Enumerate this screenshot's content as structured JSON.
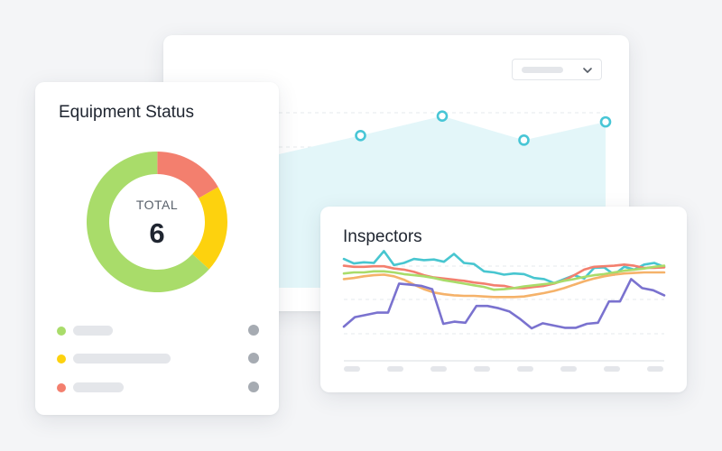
{
  "background_card": {
    "dropdown": {
      "icon": "chevron-down-icon"
    },
    "area_series": {
      "color": "#48c6d6",
      "fill": "#e3f6f9",
      "values": [
        0.0,
        0.45,
        0.92,
        0.34,
        0.78
      ],
      "markers": [
        1,
        2,
        3,
        4
      ]
    }
  },
  "equipment_status": {
    "title": "Equipment Status",
    "total_label": "TOTAL",
    "total_value": "6",
    "segments": [
      {
        "value": 1,
        "color": "#f37f6e"
      },
      {
        "value": 1.2,
        "color": "#fdd20e"
      },
      {
        "value": 3.8,
        "color": "#a9dc6a"
      }
    ],
    "legend": [
      {
        "color": "#a9dc6a"
      },
      {
        "color": "#fdd20e"
      },
      {
        "color": "#f37f6e"
      }
    ]
  },
  "inspectors": {
    "title": "Inspectors",
    "series": [
      {
        "color": "#48c6d0",
        "values": [
          0.74,
          0.66,
          0.68,
          0.67,
          0.88,
          0.63,
          0.67,
          0.74,
          0.72,
          0.73,
          0.69,
          0.83,
          0.67,
          0.65,
          0.52,
          0.5,
          0.46,
          0.48,
          0.47,
          0.4,
          0.38,
          0.31,
          0.38,
          0.45,
          0.39,
          0.58,
          0.59,
          0.46,
          0.6,
          0.55,
          0.64,
          0.67,
          0.6
        ]
      },
      {
        "color": "#f37f6e",
        "values": [
          0.62,
          0.6,
          0.6,
          0.61,
          0.61,
          0.57,
          0.55,
          0.51,
          0.45,
          0.41,
          0.39,
          0.37,
          0.35,
          0.32,
          0.3,
          0.27,
          0.26,
          0.22,
          0.22,
          0.24,
          0.26,
          0.3,
          0.36,
          0.45,
          0.55,
          0.6,
          0.61,
          0.62,
          0.64,
          0.62,
          0.58,
          0.58,
          0.59
        ]
      },
      {
        "color": "#a9dc6a",
        "values": [
          0.48,
          0.5,
          0.5,
          0.52,
          0.52,
          0.5,
          0.47,
          0.45,
          0.43,
          0.4,
          0.36,
          0.33,
          0.3,
          0.27,
          0.24,
          0.19,
          0.2,
          0.22,
          0.25,
          0.27,
          0.29,
          0.31,
          0.35,
          0.38,
          0.42,
          0.45,
          0.47,
          0.5,
          0.53,
          0.55,
          0.57,
          0.6,
          0.62
        ]
      },
      {
        "color": "#f5b26a",
        "values": [
          0.38,
          0.4,
          0.43,
          0.45,
          0.46,
          0.43,
          0.37,
          0.28,
          0.2,
          0.14,
          0.11,
          0.09,
          0.08,
          0.08,
          0.07,
          0.06,
          0.06,
          0.06,
          0.07,
          0.1,
          0.13,
          0.17,
          0.22,
          0.28,
          0.34,
          0.39,
          0.43,
          0.46,
          0.48,
          0.49,
          0.5,
          0.5,
          0.5
        ]
      },
      {
        "color": "#7a72cf",
        "values": [
          -0.47,
          -0.3,
          -0.26,
          -0.22,
          -0.22,
          0.3,
          0.28,
          0.26,
          0.2,
          -0.42,
          -0.38,
          -0.4,
          -0.1,
          -0.1,
          -0.14,
          -0.2,
          -0.34,
          -0.5,
          -0.41,
          -0.45,
          -0.49,
          -0.49,
          -0.42,
          -0.4,
          -0.02,
          -0.02,
          0.38,
          0.22,
          0.18,
          0.09
        ]
      }
    ]
  }
}
